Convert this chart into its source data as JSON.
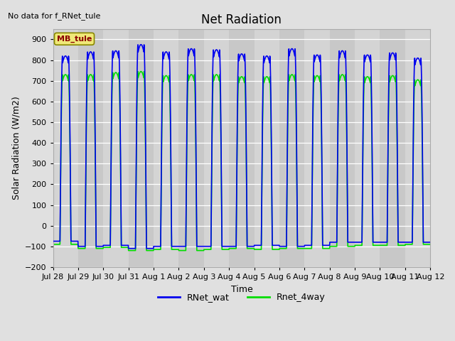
{
  "title": "Net Radiation",
  "ylabel": "Solar Radiation (W/m2)",
  "xlabel": "Time",
  "no_data_text": "No data for f_RNet_tule",
  "legend_label_box": "MB_tule",
  "ylim": [
    -200,
    950
  ],
  "yticks": [
    -200,
    -100,
    0,
    100,
    200,
    300,
    400,
    500,
    600,
    700,
    800,
    900
  ],
  "line1_color": "#0000ee",
  "line2_color": "#00dd00",
  "line1_label": "RNet_wat",
  "line2_label": "Rnet_4way",
  "background_color": "#e0e0e0",
  "plot_bg_color_light": "#d8d8d8",
  "plot_bg_color_dark": "#c8c8c8",
  "x_tick_labels": [
    "Jul 28",
    "Jul 29",
    "Jul 30",
    "Jul 31",
    "Aug 1",
    "Aug 2",
    "Aug 3",
    "Aug 4",
    "Aug 5",
    "Aug 6",
    "Aug 7",
    "Aug 8",
    "Aug 9",
    "Aug 10",
    "Aug 11",
    "Aug 12"
  ],
  "num_days": 15,
  "peaks_blue": [
    820,
    840,
    845,
    875,
    840,
    855,
    850,
    830,
    820,
    855,
    825,
    845,
    825,
    835,
    810
  ],
  "peaks_green": [
    730,
    730,
    740,
    745,
    725,
    730,
    730,
    720,
    720,
    730,
    725,
    730,
    720,
    725,
    705
  ],
  "troughs_blue": [
    -75,
    -100,
    -95,
    -110,
    -100,
    -100,
    -100,
    -100,
    -95,
    -100,
    -95,
    -80,
    -80,
    -80,
    -80
  ],
  "troughs_green": [
    -90,
    -110,
    -105,
    -120,
    -115,
    -120,
    -115,
    -110,
    -115,
    -110,
    -110,
    -100,
    -95,
    -95,
    -90
  ],
  "title_fontsize": 12,
  "label_fontsize": 9,
  "tick_fontsize": 8,
  "pts_per_day": 144
}
